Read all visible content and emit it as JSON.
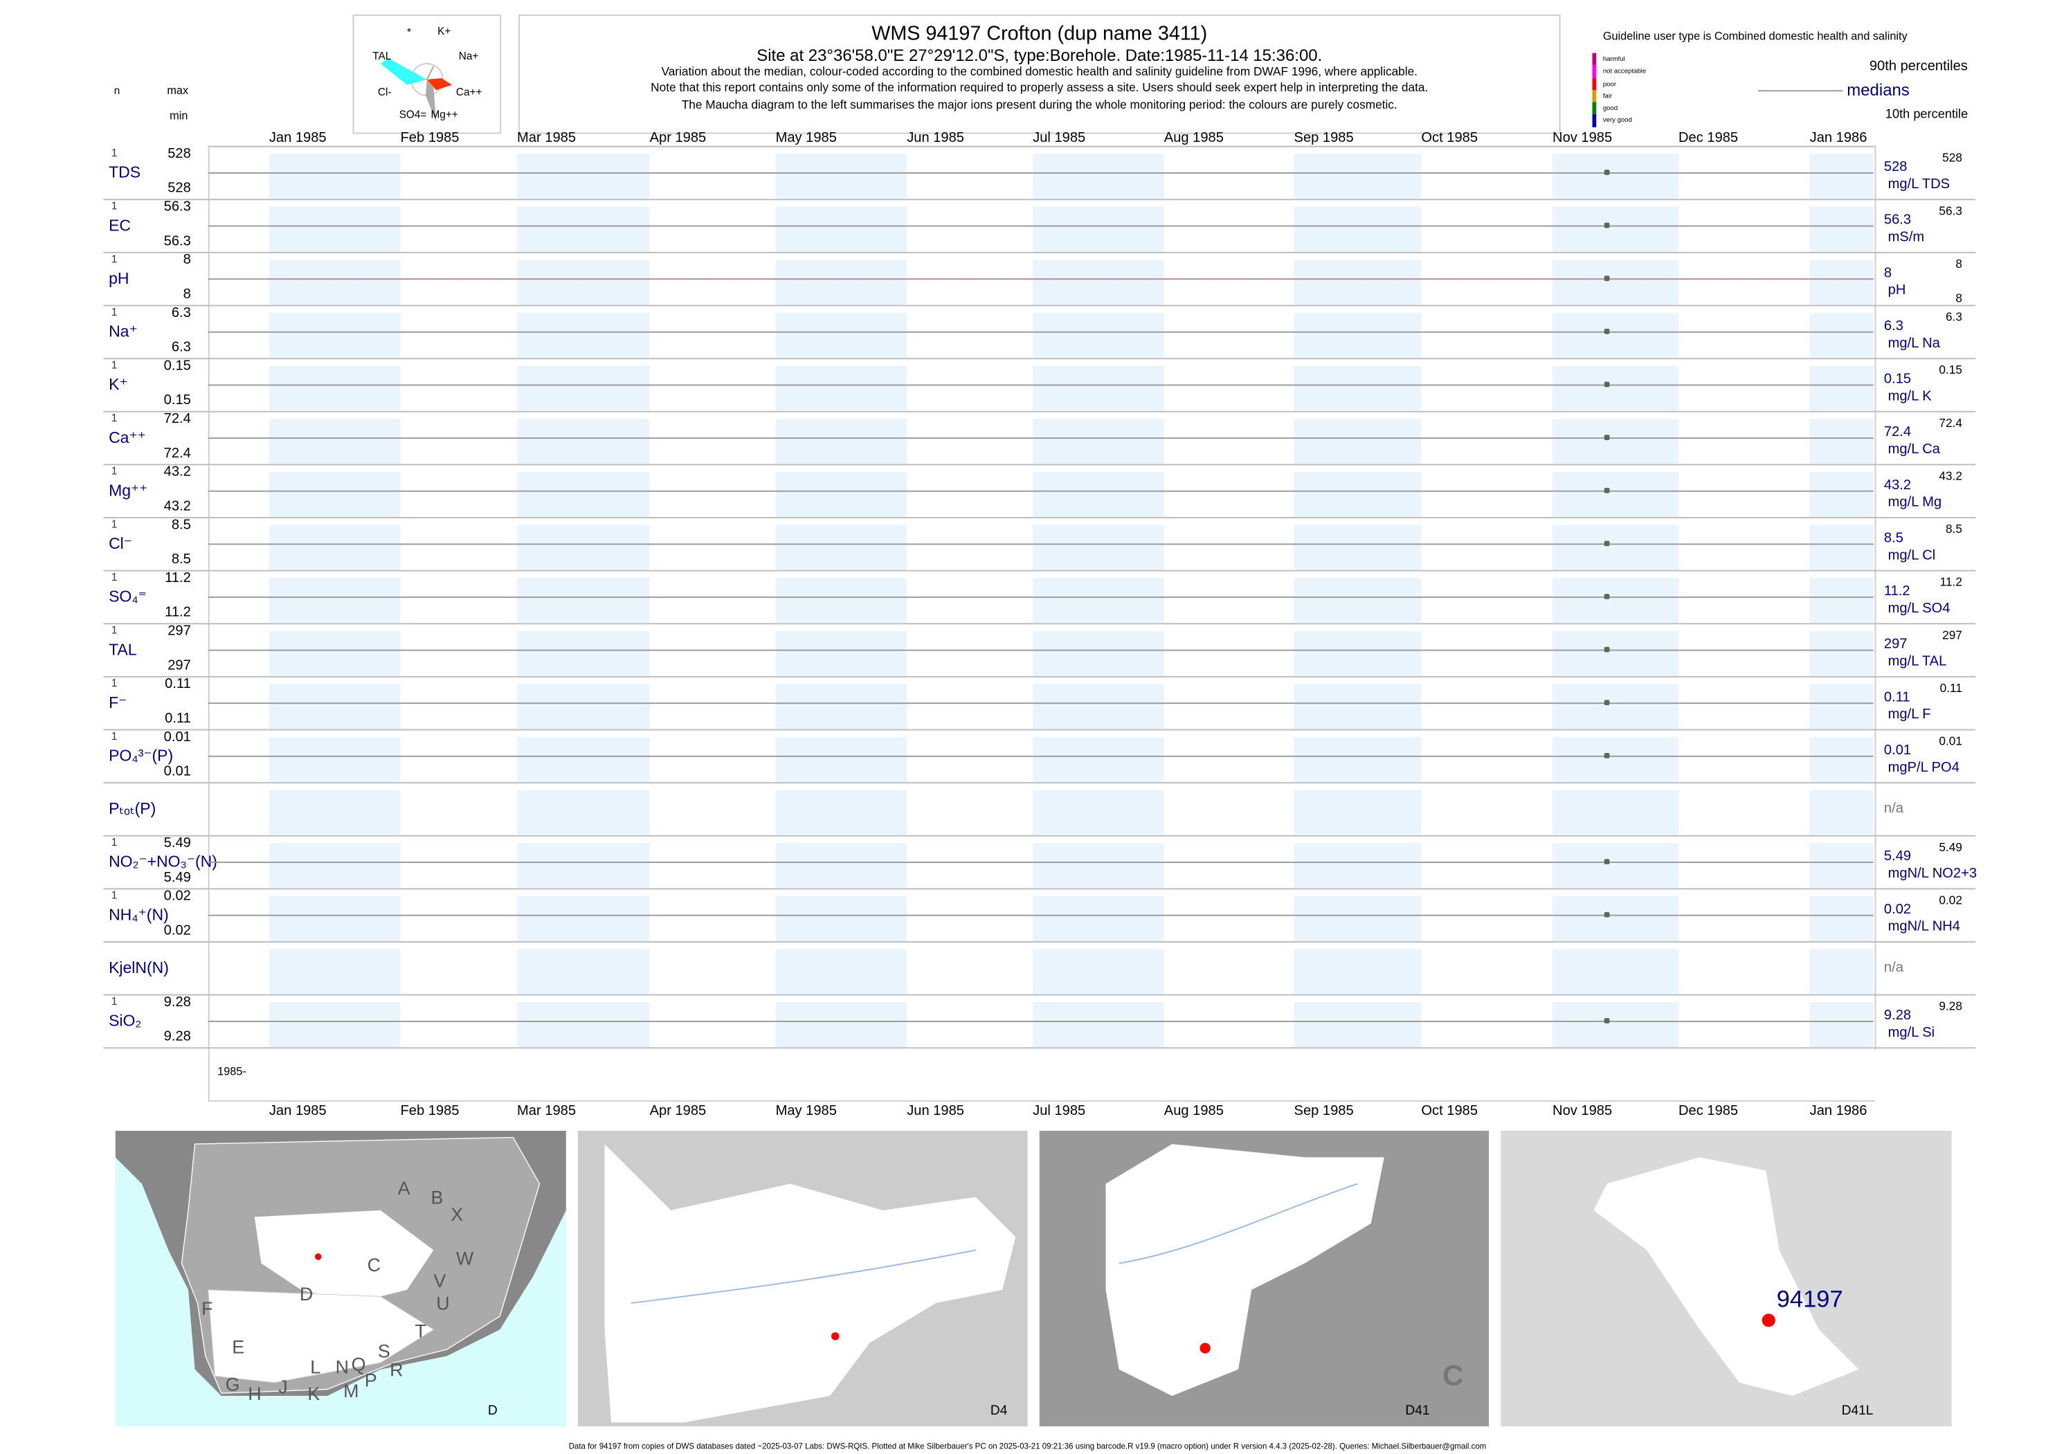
{
  "maucha": {
    "labels": [
      "*",
      "K+",
      "Na+",
      "Ca++",
      "Mg++",
      "SO4=",
      "Cl-",
      "TAL"
    ]
  },
  "header": {
    "title": "WMS 94197  Crofton (dup name 3411)",
    "site": "Site at 23°36'58.0\"E 27°29'12.0\"S, type:Borehole. Date:1985-11-14 15:36:00.",
    "note1": "Variation about the median,  colour-coded according to the combined domestic health and salinity guideline from DWAF 1996, where applicable.",
    "note2": "Note that this report contains only some of the information required to properly assess a site. Users should seek expert help in interpreting the data.",
    "note3": "The Maucha diagram to the left summarises the major ions present during the whole monitoring period: the colours are purely cosmetic."
  },
  "legend": {
    "guideline": "Guideline user type is Combined domestic health and salinity",
    "classes": [
      {
        "label": "harmful",
        "color": "#c0007a"
      },
      {
        "label": "not acceptable",
        "color": "#ff00ff"
      },
      {
        "label": "poor",
        "color": "#ff0000"
      },
      {
        "label": "fair",
        "color": "#d4a000"
      },
      {
        "label": "good",
        "color": "#008000"
      },
      {
        "label": "very good",
        "color": "#0000c0"
      }
    ],
    "p90": "90th percentiles",
    "medians": "medians",
    "p10": "10th percentile"
  },
  "left_header": {
    "n": "n",
    "max": "max",
    "min": "min"
  },
  "chart_data": {
    "type": "scatter",
    "x_start_label": "1985-",
    "x_ticks": [
      "Jan 1985",
      "Feb 1985",
      "Mar 1985",
      "Apr 1985",
      "May 1985",
      "Jun 1985",
      "Jul 1985",
      "Aug 1985",
      "Sep 1985",
      "Oct 1985",
      "Nov 1985",
      "Dec 1985",
      "Jan 1986"
    ],
    "sample_date": "1985-11-14",
    "shade_color": "#eaf4fd",
    "rows": [
      {
        "label": "TDS",
        "n": "1",
        "max": "528",
        "min": "528",
        "median": "528",
        "unit": "mg/L TDS",
        "p90": "528"
      },
      {
        "label": "EC",
        "n": "1",
        "max": "56.3",
        "min": "56.3",
        "median": "56.3",
        "unit": "mS/m",
        "p90": "56.3"
      },
      {
        "label": "pH",
        "n": "1",
        "max": "8",
        "min": "8",
        "median": "8",
        "unit": "pH",
        "p90": "8",
        "p10": "8"
      },
      {
        "label": "Na⁺",
        "n": "1",
        "max": "6.3",
        "min": "6.3",
        "median": "6.3",
        "unit": "mg/L Na",
        "p90": "6.3"
      },
      {
        "label": "K⁺",
        "n": "1",
        "max": "0.15",
        "min": "0.15",
        "median": "0.15",
        "unit": "mg/L K",
        "p90": "0.15"
      },
      {
        "label": "Ca⁺⁺",
        "n": "1",
        "max": "72.4",
        "min": "72.4",
        "median": "72.4",
        "unit": "mg/L Ca",
        "p90": "72.4"
      },
      {
        "label": "Mg⁺⁺",
        "n": "1",
        "max": "43.2",
        "min": "43.2",
        "median": "43.2",
        "unit": "mg/L Mg",
        "p90": "43.2"
      },
      {
        "label": "Cl⁻",
        "n": "1",
        "max": "8.5",
        "min": "8.5",
        "median": "8.5",
        "unit": "mg/L Cl",
        "p90": "8.5"
      },
      {
        "label": "SO₄⁼",
        "n": "1",
        "max": "11.2",
        "min": "11.2",
        "median": "11.2",
        "unit": "mg/L SO4",
        "p90": "11.2"
      },
      {
        "label": "TAL",
        "n": "1",
        "max": "297",
        "min": "297",
        "median": "297",
        "unit": "mg/L TAL",
        "p90": "297"
      },
      {
        "label": "F⁻",
        "n": "1",
        "max": "0.11",
        "min": "0.11",
        "median": "0.11",
        "unit": "mg/L F",
        "p90": "0.11"
      },
      {
        "label": "PO₄³⁻(P)",
        "n": "1",
        "max": "0.01",
        "min": "0.01",
        "median": "0.01",
        "unit": "mgP/L PO4",
        "p90": "0.01"
      },
      {
        "label": "Pₜₒₜ(P)",
        "na": "n/a"
      },
      {
        "label": "NO₂⁻+NO₃⁻(N)",
        "n": "1",
        "max": "5.49",
        "min": "5.49",
        "median": "5.49",
        "unit": "mgN/L NO2+3",
        "p90": "5.49"
      },
      {
        "label": "NH₄⁺(N)",
        "n": "1",
        "max": "0.02",
        "min": "0.02",
        "median": "0.02",
        "unit": "mgN/L NH4",
        "p90": "0.02"
      },
      {
        "label": "KjelN(N)",
        "na": "n/a"
      },
      {
        "label": "SiO₂",
        "n": "1",
        "max": "9.28",
        "min": "9.28",
        "median": "9.28",
        "unit": "mg/L Si",
        "p90": "9.28"
      }
    ]
  },
  "maps": [
    {
      "label": "D",
      "regions": [
        "A",
        "B",
        "X",
        "W",
        "C",
        "V",
        "U",
        "D",
        "T",
        "F",
        "E",
        "S",
        "R",
        "Q",
        "N",
        "L",
        "G",
        "H",
        "J",
        "K",
        "M",
        "P"
      ]
    },
    {
      "label": "D4"
    },
    {
      "label": "D41",
      "region": "C"
    },
    {
      "label": "D41L",
      "site": "94197"
    }
  ],
  "footer": "Data for 94197 from copies of DWS databases dated ~2025-03-07 Labs: DWS-RQIS. Plotted at Mike Silberbauer's PC on 2025-03-21 09:21:36 using barcode.R v19.9 (macro option) under R version 4.4.3 (2025-02-28). Queries: Michael.Silberbauer@gmail.com"
}
